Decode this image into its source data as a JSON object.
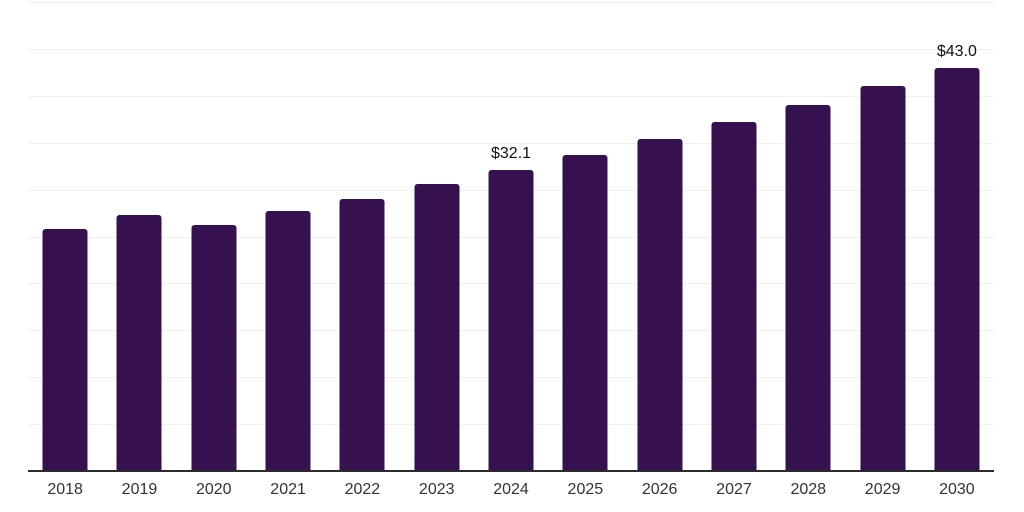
{
  "chart": {
    "background_color": "#ffffff",
    "bar_color": "#351150",
    "gridline_color": "#f0f0f0",
    "axis_color": "#2b2b2b",
    "tick_label_color": "#333333",
    "data_label_color": "#111111"
  },
  "chart_data": {
    "type": "bar",
    "title": "",
    "xlabel": "",
    "ylabel": "",
    "categories": [
      "2018",
      "2019",
      "2020",
      "2021",
      "2022",
      "2023",
      "2024",
      "2025",
      "2026",
      "2027",
      "2028",
      "2029",
      "2030"
    ],
    "values": [
      25.8,
      27.3,
      26.2,
      27.7,
      29.0,
      30.6,
      32.1,
      33.7,
      35.4,
      37.2,
      39.0,
      41.0,
      43.0
    ],
    "data_labels": [
      "",
      "",
      "",
      "",
      "",
      "",
      "$32.1",
      "",
      "",
      "",
      "",
      "",
      "$43.0"
    ],
    "ylim": [
      0,
      50
    ],
    "gridline_step": 5,
    "grid": "horizontal-only",
    "y_axis_tick_labels_visible": false,
    "legend_position": "none"
  }
}
